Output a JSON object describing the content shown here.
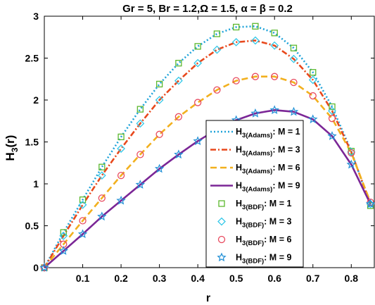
{
  "chart_data": {
    "type": "line",
    "title": "Gr = 5, Br = 1.2,Ω = 1.5, α = β = 0.2",
    "xlabel": "r",
    "ylabel": "H3(r)",
    "xlim": [
      0,
      0.86
    ],
    "ylim": [
      0,
      3
    ],
    "xticks": [
      0.1,
      0.2,
      0.3,
      0.4,
      0.5,
      0.6,
      0.7,
      0.8
    ],
    "yticks": [
      0,
      0.5,
      1,
      1.5,
      2,
      2.5,
      3
    ],
    "grid": false,
    "legend_position": "bottom-right",
    "lines": [
      {
        "name": "H3(Adams): M = 1",
        "base": "H",
        "sub": "3(Adams)",
        "rest": ": M = 1",
        "color": "#1fa3d9",
        "dash": "dotted",
        "x": [
          0,
          0.05,
          0.1,
          0.15,
          0.2,
          0.25,
          0.3,
          0.35,
          0.4,
          0.45,
          0.5,
          0.55,
          0.6,
          0.65,
          0.7,
          0.75,
          0.8,
          0.85
        ],
        "y": [
          0,
          0.42,
          0.81,
          1.2,
          1.56,
          1.89,
          2.19,
          2.44,
          2.64,
          2.79,
          2.87,
          2.88,
          2.8,
          2.62,
          2.33,
          1.92,
          1.39,
          0.74
        ]
      },
      {
        "name": "H3(Adams): M = 3",
        "base": "H",
        "sub": "3(Adams)",
        "rest": ": M = 3",
        "color": "#e8481c",
        "dash": "dashdot",
        "x": [
          0,
          0.05,
          0.1,
          0.15,
          0.2,
          0.25,
          0.3,
          0.35,
          0.4,
          0.45,
          0.5,
          0.55,
          0.6,
          0.65,
          0.7,
          0.75,
          0.8,
          0.85
        ],
        "y": [
          0,
          0.38,
          0.75,
          1.1,
          1.42,
          1.72,
          2.0,
          2.23,
          2.44,
          2.6,
          2.69,
          2.71,
          2.65,
          2.49,
          2.24,
          1.87,
          1.38,
          0.76
        ]
      },
      {
        "name": "H3(Adams): M = 6",
        "base": "H",
        "sub": "3(Adams)",
        "rest": ": M = 6",
        "color": "#f2b01e",
        "dash": "dashed",
        "x": [
          0,
          0.05,
          0.1,
          0.15,
          0.2,
          0.25,
          0.3,
          0.35,
          0.4,
          0.45,
          0.5,
          0.55,
          0.6,
          0.65,
          0.7,
          0.75,
          0.8,
          0.85
        ],
        "y": [
          0,
          0.28,
          0.56,
          0.83,
          1.1,
          1.35,
          1.59,
          1.8,
          1.97,
          2.12,
          2.23,
          2.28,
          2.28,
          2.21,
          2.05,
          1.78,
          1.37,
          0.78
        ]
      },
      {
        "name": "H3(Adams): M = 9",
        "base": "H",
        "sub": "3(Adams)",
        "rest": ": M = 9",
        "color": "#7b2696",
        "dash": "solid",
        "x": [
          0,
          0.05,
          0.1,
          0.15,
          0.2,
          0.25,
          0.3,
          0.35,
          0.4,
          0.45,
          0.5,
          0.55,
          0.6,
          0.65,
          0.7,
          0.75,
          0.8,
          0.85
        ],
        "y": [
          0,
          0.2,
          0.4,
          0.61,
          0.8,
          0.99,
          1.18,
          1.35,
          1.51,
          1.65,
          1.76,
          1.84,
          1.88,
          1.86,
          1.77,
          1.57,
          1.23,
          0.76
        ]
      }
    ],
    "markers": [
      {
        "name": "H3(BDF): M = 1",
        "base": "H",
        "sub": "3(BDF)",
        "rest": ": M = 1",
        "color": "#5cb82e",
        "shape": "square",
        "x": [
          0,
          0.05,
          0.1,
          0.15,
          0.2,
          0.25,
          0.3,
          0.35,
          0.4,
          0.45,
          0.5,
          0.55,
          0.6,
          0.65,
          0.7,
          0.75,
          0.8,
          0.85
        ],
        "y": [
          0,
          0.42,
          0.81,
          1.2,
          1.56,
          1.89,
          2.19,
          2.44,
          2.64,
          2.79,
          2.87,
          2.88,
          2.8,
          2.62,
          2.33,
          1.92,
          1.39,
          0.74
        ]
      },
      {
        "name": "H3(BDF): M = 3",
        "base": "H",
        "sub": "3(BDF)",
        "rest": ": M = 3",
        "color": "#35c8e8",
        "shape": "diamond",
        "x": [
          0,
          0.05,
          0.1,
          0.15,
          0.2,
          0.25,
          0.3,
          0.35,
          0.4,
          0.45,
          0.5,
          0.55,
          0.6,
          0.65,
          0.7,
          0.75,
          0.8,
          0.85
        ],
        "y": [
          0,
          0.38,
          0.75,
          1.1,
          1.42,
          1.72,
          2.0,
          2.23,
          2.44,
          2.6,
          2.69,
          2.71,
          2.65,
          2.49,
          2.24,
          1.87,
          1.38,
          0.76
        ]
      },
      {
        "name": "H3(BDF): M = 6",
        "base": "H",
        "sub": "3(BDF)",
        "rest": ": M = 6",
        "color": "#e84a5f",
        "shape": "circle",
        "x": [
          0,
          0.05,
          0.1,
          0.15,
          0.2,
          0.25,
          0.3,
          0.35,
          0.4,
          0.45,
          0.5,
          0.55,
          0.6,
          0.65,
          0.7,
          0.75,
          0.8,
          0.85
        ],
        "y": [
          0,
          0.28,
          0.56,
          0.83,
          1.1,
          1.35,
          1.59,
          1.8,
          1.97,
          2.12,
          2.23,
          2.28,
          2.28,
          2.21,
          2.05,
          1.78,
          1.37,
          0.78
        ]
      },
      {
        "name": "H3(BDF): M = 9",
        "base": "H",
        "sub": "3(BDF)",
        "rest": ": M = 9",
        "color": "#1f8fd6",
        "shape": "star",
        "x": [
          0,
          0.05,
          0.1,
          0.15,
          0.2,
          0.25,
          0.3,
          0.35,
          0.4,
          0.45,
          0.5,
          0.55,
          0.6,
          0.65,
          0.7,
          0.75,
          0.8,
          0.85
        ],
        "y": [
          0,
          0.2,
          0.4,
          0.61,
          0.8,
          0.99,
          1.18,
          1.35,
          1.51,
          1.65,
          1.76,
          1.84,
          1.88,
          1.86,
          1.77,
          1.57,
          1.23,
          0.76
        ]
      }
    ]
  }
}
